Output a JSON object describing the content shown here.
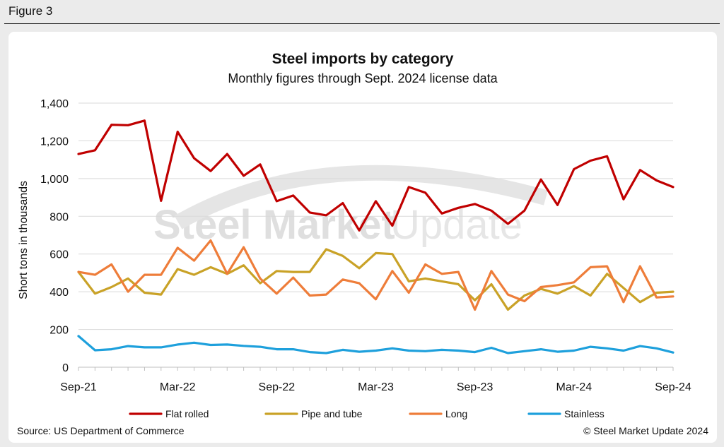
{
  "figure_label": "Figure 3",
  "watermark": {
    "bold": "Steel Market",
    "light": "Update"
  },
  "source": "Source: US Department of Commerce",
  "copyright": "© Steel Market Update 2024",
  "colors": {
    "flat_rolled": "#c00000",
    "pipe_and_tube": "#c9a227",
    "long": "#ee7d3a",
    "stainless": "#1ea0dc",
    "grid": "#d9d9d9"
  },
  "chart_data": {
    "type": "line",
    "title": "Steel imports by category",
    "subtitle": "Monthly figures through Sept. 2024 license data",
    "xlabel": "",
    "ylabel": "Short tons in thousands",
    "ylim": [
      0,
      1400
    ],
    "yticks": [
      0,
      200,
      400,
      600,
      800,
      1000,
      1200,
      1400
    ],
    "ytick_labels": [
      "0",
      "200",
      "400",
      "600",
      "800",
      "1,000",
      "1,200",
      "1,400"
    ],
    "x": [
      "Sep-21",
      "Oct-21",
      "Nov-21",
      "Dec-21",
      "Jan-22",
      "Feb-22",
      "Mar-22",
      "Apr-22",
      "May-22",
      "Jun-22",
      "Jul-22",
      "Aug-22",
      "Sep-22",
      "Oct-22",
      "Nov-22",
      "Dec-22",
      "Jan-23",
      "Feb-23",
      "Mar-23",
      "Apr-23",
      "May-23",
      "Jun-23",
      "Jul-23",
      "Aug-23",
      "Sep-23",
      "Oct-23",
      "Nov-23",
      "Dec-23",
      "Jan-24",
      "Feb-24",
      "Mar-24",
      "Apr-24",
      "May-24",
      "Jun-24",
      "Jul-24",
      "Aug-24",
      "Sep-24"
    ],
    "xtick_labels": [
      "Sep-21",
      "Mar-22",
      "Sep-22",
      "Mar-23",
      "Sep-23",
      "Mar-24",
      "Sep-24"
    ],
    "xtick_indices": [
      0,
      6,
      12,
      18,
      24,
      30,
      36
    ],
    "legend_position": "bottom",
    "series": [
      {
        "name": "Flat rolled",
        "color_key": "flat_rolled",
        "values": [
          1130,
          1150,
          1285,
          1283,
          1307,
          882,
          1248,
          1108,
          1040,
          1130,
          1015,
          1075,
          880,
          910,
          820,
          805,
          870,
          725,
          880,
          750,
          955,
          925,
          815,
          845,
          865,
          830,
          760,
          830,
          995,
          860,
          1050,
          1095,
          1118,
          890,
          1045,
          990,
          955
        ]
      },
      {
        "name": "Pipe and tube",
        "color_key": "pipe_and_tube",
        "values": [
          505,
          390,
          425,
          470,
          395,
          385,
          520,
          490,
          530,
          495,
          540,
          445,
          510,
          505,
          505,
          625,
          590,
          525,
          605,
          600,
          455,
          470,
          455,
          440,
          355,
          440,
          305,
          380,
          415,
          390,
          430,
          380,
          495,
          420,
          345,
          395,
          400
        ]
      },
      {
        "name": "Long",
        "color_key": "long",
        "values": [
          505,
          490,
          545,
          400,
          490,
          490,
          633,
          565,
          672,
          495,
          636,
          470,
          390,
          475,
          380,
          385,
          465,
          445,
          360,
          510,
          395,
          545,
          495,
          505,
          305,
          510,
          385,
          350,
          425,
          435,
          450,
          530,
          535,
          345,
          535,
          370,
          375
        ]
      },
      {
        "name": "Stainless",
        "color_key": "stainless",
        "values": [
          165,
          90,
          95,
          112,
          105,
          105,
          120,
          130,
          118,
          120,
          113,
          108,
          95,
          95,
          80,
          75,
          92,
          82,
          88,
          100,
          88,
          85,
          92,
          88,
          80,
          103,
          75,
          85,
          95,
          82,
          88,
          108,
          100,
          88,
          112,
          100,
          78
        ]
      }
    ]
  }
}
